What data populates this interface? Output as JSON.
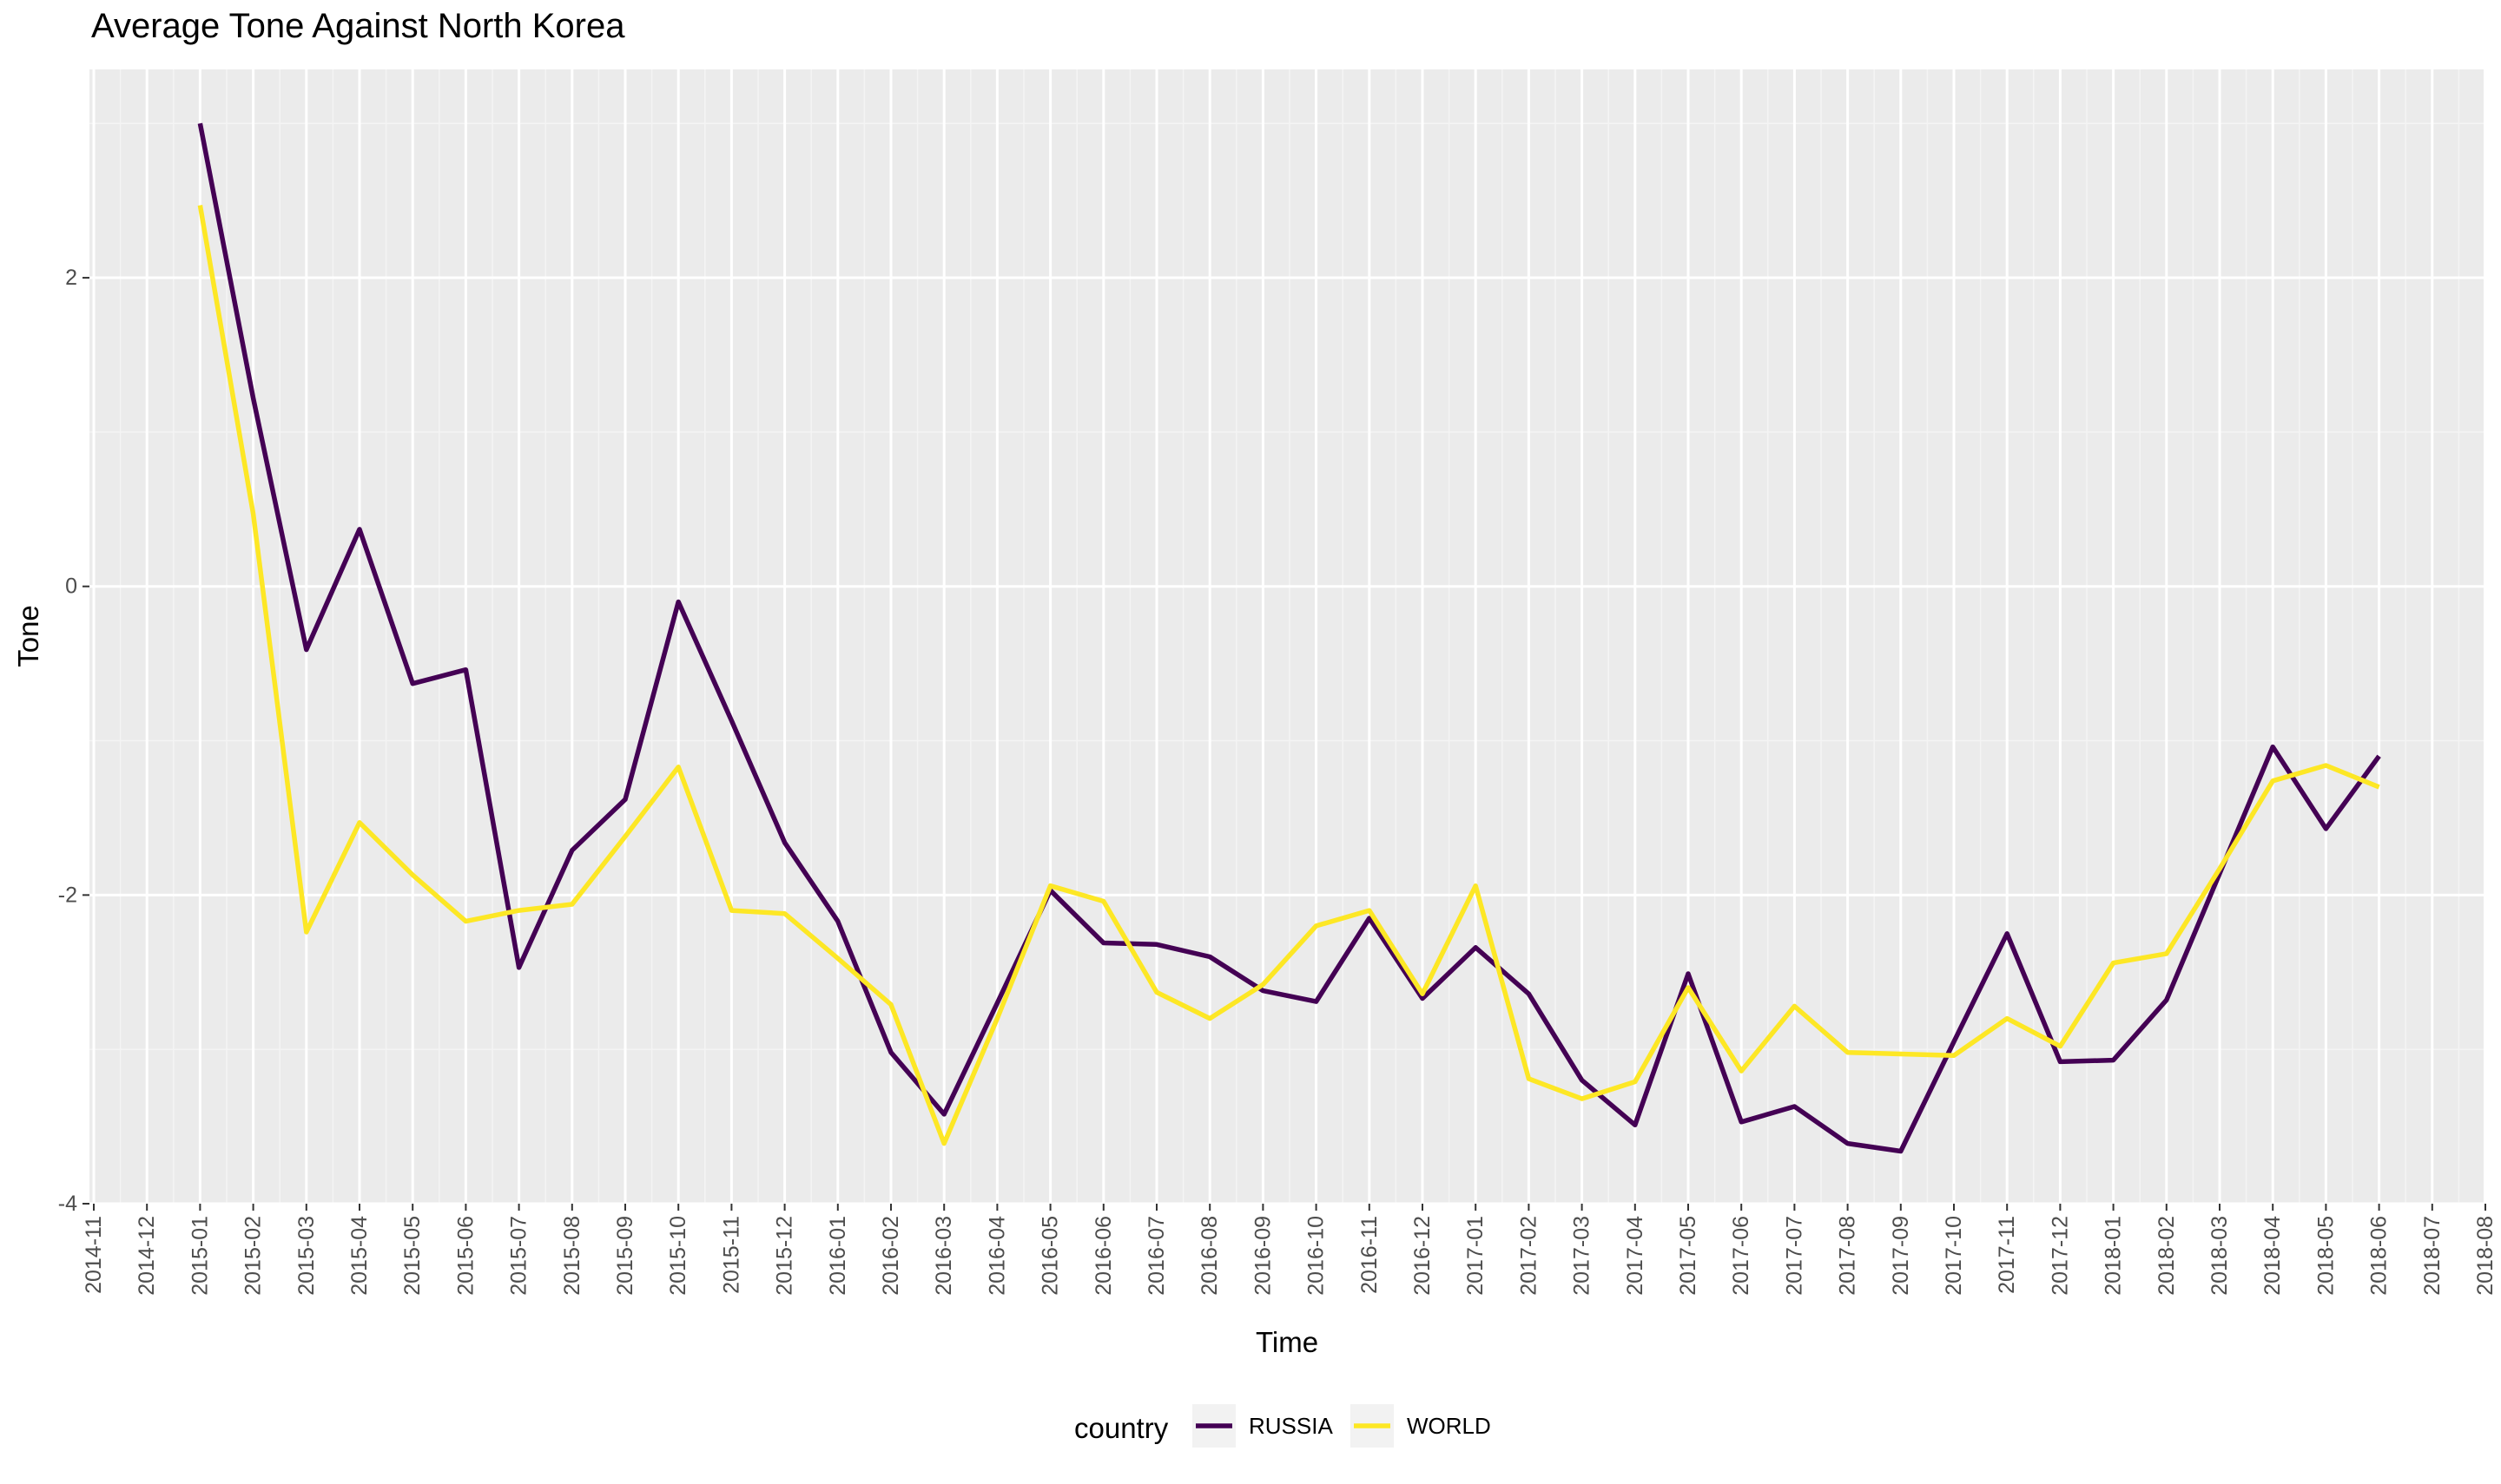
{
  "chart_data": {
    "type": "line",
    "title": "Average Tone Against North Korea",
    "xlabel": "Time",
    "ylabel": "Tone",
    "ylim": [
      -4,
      3.35
    ],
    "y_ticks": [
      -4,
      -2,
      0,
      2
    ],
    "grid": true,
    "legend": {
      "title": "country",
      "position": "bottom"
    },
    "x_ticks": [
      "2014-11",
      "2014-12",
      "2015-01",
      "2015-02",
      "2015-03",
      "2015-04",
      "2015-05",
      "2015-06",
      "2015-07",
      "2015-08",
      "2015-09",
      "2015-10",
      "2015-11",
      "2015-12",
      "2016-01",
      "2016-02",
      "2016-03",
      "2016-04",
      "2016-05",
      "2016-06",
      "2016-07",
      "2016-08",
      "2016-09",
      "2016-10",
      "2016-11",
      "2016-12",
      "2017-01",
      "2017-02",
      "2017-03",
      "2017-04",
      "2017-05",
      "2017-06",
      "2017-07",
      "2017-08",
      "2017-09",
      "2017-10",
      "2017-11",
      "2017-12",
      "2018-01",
      "2018-02",
      "2018-03",
      "2018-04",
      "2018-05",
      "2018-06",
      "2018-07",
      "2018-08"
    ],
    "x": [
      "2015-01",
      "2015-02",
      "2015-03",
      "2015-04",
      "2015-05",
      "2015-06",
      "2015-07",
      "2015-08",
      "2015-09",
      "2015-10",
      "2015-11",
      "2015-12",
      "2016-01",
      "2016-02",
      "2016-03",
      "2016-04",
      "2016-05",
      "2016-06",
      "2016-07",
      "2016-08",
      "2016-09",
      "2016-10",
      "2016-11",
      "2016-12",
      "2017-01",
      "2017-02",
      "2017-03",
      "2017-04",
      "2017-05",
      "2017-06",
      "2017-07",
      "2017-08",
      "2017-09",
      "2017-10",
      "2017-11",
      "2017-12",
      "2018-01",
      "2018-02",
      "2018-03",
      "2018-04",
      "2018-05",
      "2018-06"
    ],
    "series": [
      {
        "name": "RUSSIA",
        "color": "#440154",
        "values": [
          3.0,
          1.22,
          -0.41,
          0.37,
          -0.63,
          -0.54,
          -2.47,
          -1.71,
          -1.38,
          -0.1,
          -0.87,
          -1.66,
          -2.17,
          -3.02,
          -3.42,
          -2.7,
          -1.97,
          -2.31,
          -2.32,
          -2.4,
          -2.62,
          -2.69,
          -2.15,
          -2.67,
          -2.34,
          -2.64,
          -3.2,
          -3.49,
          -2.51,
          -3.47,
          -3.37,
          -3.61,
          -3.66,
          -2.95,
          -2.25,
          -3.08,
          -3.07,
          -2.68,
          -1.86,
          -1.04,
          -1.57,
          -1.1
        ]
      },
      {
        "name": "WORLD",
        "color": "#FDE725",
        "values": [
          2.47,
          0.47,
          -2.24,
          -1.53,
          -1.87,
          -2.17,
          -2.1,
          -2.06,
          -1.62,
          -1.17,
          -2.1,
          -2.12,
          -2.41,
          -2.71,
          -3.61,
          -2.8,
          -1.94,
          -2.04,
          -2.63,
          -2.8,
          -2.58,
          -2.2,
          -2.1,
          -2.64,
          -1.94,
          -3.19,
          -3.32,
          -3.21,
          -2.6,
          -3.14,
          -2.72,
          -3.02,
          -3.03,
          -3.04,
          -2.8,
          -2.98,
          -2.44,
          -2.38,
          -1.83,
          -1.26,
          -1.16,
          -1.3
        ]
      }
    ]
  }
}
